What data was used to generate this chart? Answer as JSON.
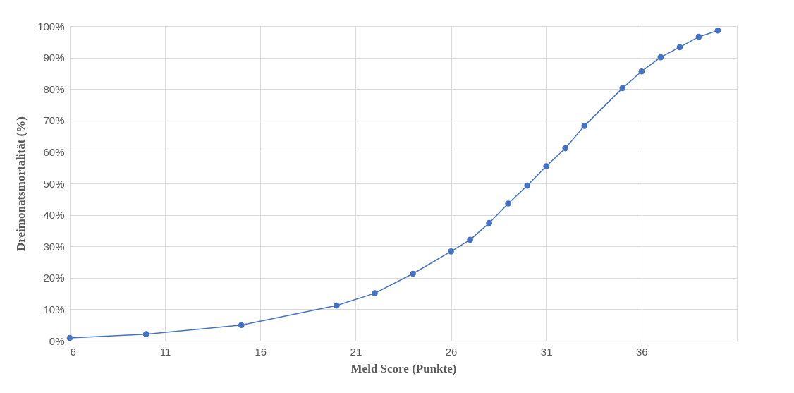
{
  "chart_data": {
    "type": "line",
    "xlabel": "Meld Score (Punkte)",
    "ylabel": "Dreimonatsmortalität (%)",
    "x": [
      6,
      10,
      15,
      20,
      22,
      24,
      26,
      27,
      28,
      29,
      30,
      31,
      32,
      33,
      35,
      36,
      37,
      38,
      39,
      40
    ],
    "series": [
      {
        "color": "#4472c4",
        "values": [
          0.9,
          2.1,
          5.0,
          11.2,
          15.1,
          21.3,
          28.4,
          32.1,
          37.4,
          43.6,
          49.3,
          55.5,
          61.2,
          68.3,
          80.3,
          85.6,
          90.1,
          93.3,
          96.6,
          98.6
        ]
      }
    ],
    "xlim": [
      6,
      41
    ],
    "xticks": [
      6,
      11,
      16,
      21,
      26,
      31,
      36
    ],
    "ylim": [
      0,
      100
    ],
    "yticks": [
      {
        "value": 0,
        "label": "0%"
      },
      {
        "value": 10,
        "label": "10%"
      },
      {
        "value": 20,
        "label": "20%"
      },
      {
        "value": 30,
        "label": "30%"
      },
      {
        "value": 40,
        "label": "40%"
      },
      {
        "value": 50,
        "label": "50%"
      },
      {
        "value": 60,
        "label": "60%"
      },
      {
        "value": 70,
        "label": "70%"
      },
      {
        "value": 80,
        "label": "80%"
      },
      {
        "value": 90,
        "label": "90%"
      },
      {
        "value": 100,
        "label": "100%"
      }
    ],
    "grid": true,
    "marker": "circle",
    "line_style": "solid"
  }
}
